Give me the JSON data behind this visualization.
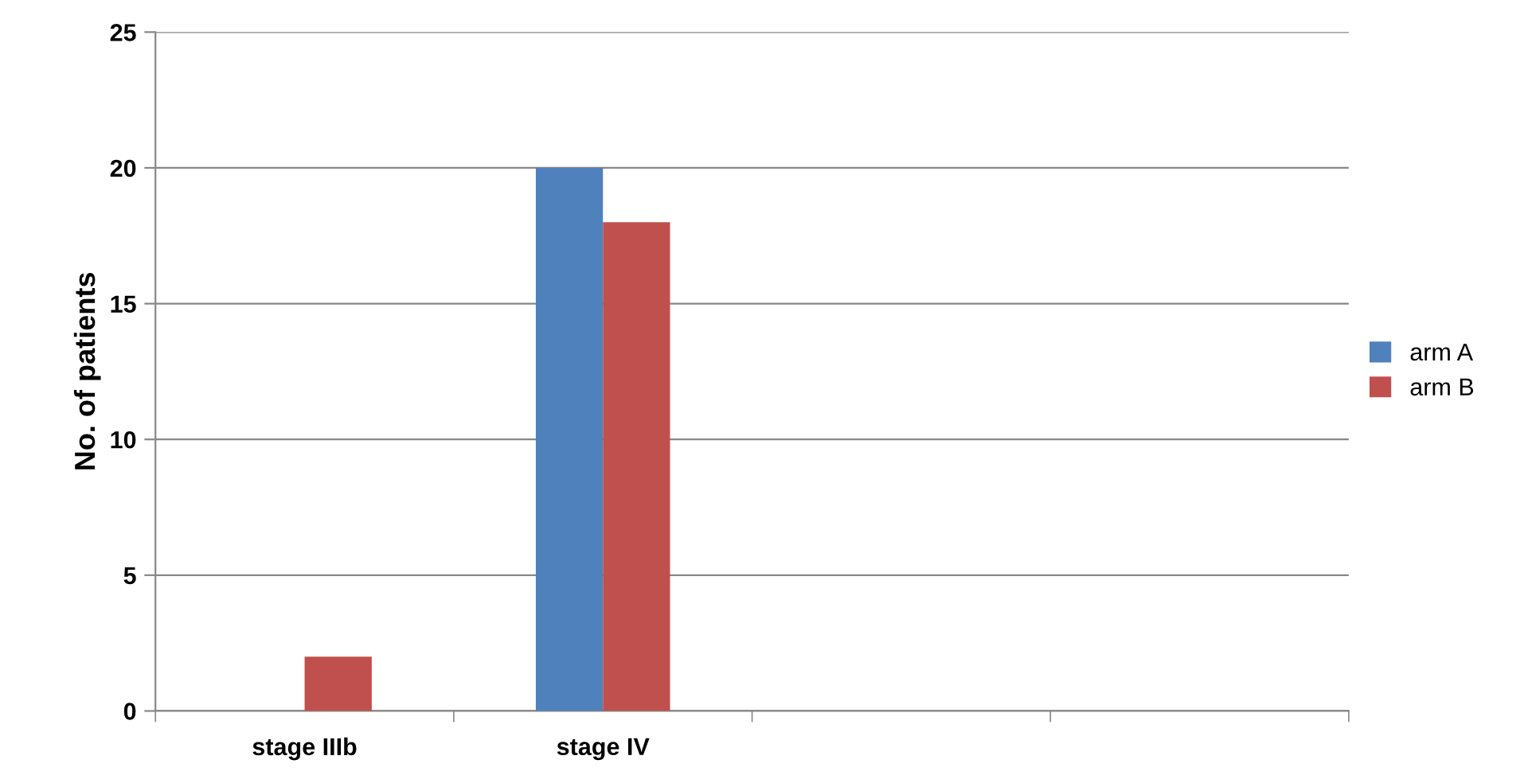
{
  "chart_data": {
    "type": "bar",
    "ylabel": "No. of patients",
    "categories": [
      "stage IIIb",
      "stage IV",
      null,
      null
    ],
    "series": [
      {
        "name": "arm A",
        "color": "#4f81bd",
        "values": [
          0,
          20,
          null,
          null
        ]
      },
      {
        "name": "arm B",
        "color": "#c0504d",
        "values": [
          2,
          18,
          null,
          null
        ]
      }
    ],
    "ylim": [
      0,
      25
    ],
    "yticks": [
      0,
      5,
      10,
      15,
      20,
      25
    ],
    "grid": "y",
    "legend": "right"
  }
}
